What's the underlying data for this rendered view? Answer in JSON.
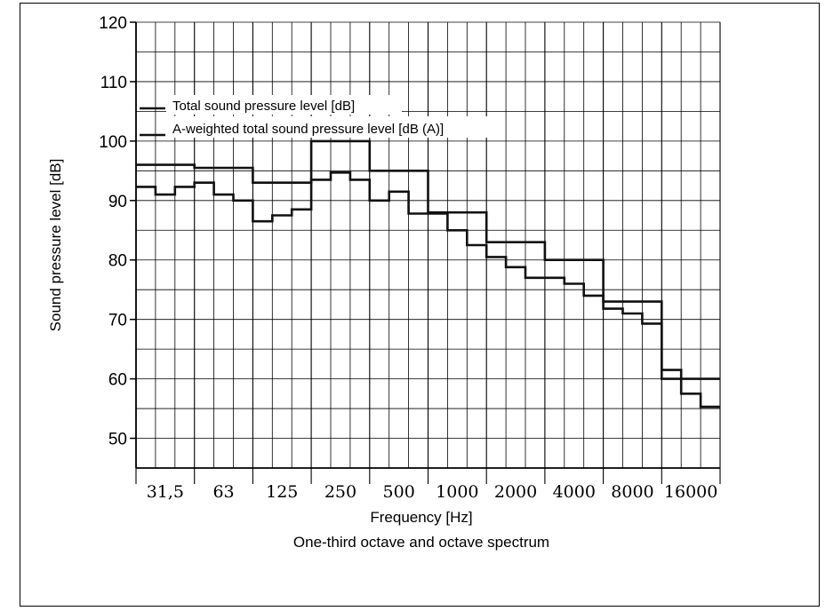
{
  "chart_data": {
    "type": "line",
    "step": true,
    "title": "",
    "subtitle": "One-third octave and octave spectrum",
    "xlabel": "Frequency [Hz]",
    "ylabel": "Sound pressure level [dB]",
    "ylim": [
      45,
      120
    ],
    "yticks": [
      50,
      60,
      70,
      80,
      90,
      100,
      110,
      120
    ],
    "grid": true,
    "legend_position": "top-left",
    "x_tick_labels": [
      "31,5",
      "63",
      "125",
      "250",
      "500",
      "1000",
      "2000",
      "4000",
      "8000",
      "16000"
    ],
    "third_octave_bands": [
      "25",
      "31.5",
      "40",
      "50",
      "63",
      "80",
      "100",
      "125",
      "160",
      "200",
      "250",
      "315",
      "400",
      "500",
      "630",
      "800",
      "1000",
      "1250",
      "1600",
      "2000",
      "2500",
      "3150",
      "4000",
      "5000",
      "6300",
      "8000",
      "10000",
      "12500",
      "16000",
      "20000"
    ],
    "series": [
      {
        "name": "Total sound pressure level [dB]",
        "resolution": "octave",
        "bands": [
          "31.5",
          "63",
          "125",
          "250",
          "500",
          "1000",
          "2000",
          "4000",
          "8000",
          "16000"
        ],
        "values": [
          96,
          95.5,
          93,
          100,
          95,
          88,
          83,
          80,
          73,
          60
        ]
      },
      {
        "name": "A-weighted total sound pressure level [dB (A)]",
        "resolution": "third-octave",
        "bands": [
          "25",
          "31.5",
          "40",
          "50",
          "63",
          "80",
          "100",
          "125",
          "160",
          "200",
          "250",
          "315",
          "400",
          "500",
          "630",
          "800",
          "1000",
          "1250",
          "1600",
          "2000",
          "2500",
          "3150",
          "4000",
          "5000",
          "6300",
          "8000",
          "10000",
          "12500",
          "16000",
          "20000"
        ],
        "values": [
          92.3,
          91,
          92.3,
          93,
          91,
          90,
          86.5,
          87.5,
          88.5,
          93.5,
          94.7,
          93.5,
          90,
          91.5,
          87.8,
          87.8,
          85,
          82.5,
          80.5,
          78.8,
          77,
          77,
          76,
          74,
          71.8,
          71,
          69.3,
          61.5,
          57.5,
          55.3
        ]
      }
    ]
  }
}
